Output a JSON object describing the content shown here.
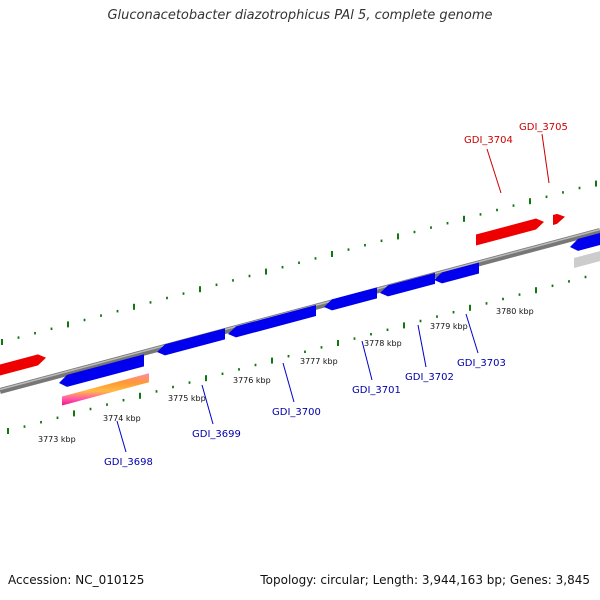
{
  "title": "Gluconacetobacter diazotrophicus PAl 5, complete genome",
  "footer": {
    "accession": "Accession: NC_010125",
    "topology": "Topology: circular; Length: 3,944,163 bp; Genes: 3,845"
  },
  "colors": {
    "forward_gene": "#ee0000",
    "reverse_gene": "#0000ee",
    "rna": "#ff9933",
    "tick": "#117711",
    "backbone": "#888888",
    "grey_feature": "#cccccc"
  },
  "kbp_labels": [
    "3773 kbp",
    "3774 kbp",
    "3775 kbp",
    "3776 kbp",
    "3777 kbp",
    "3778 kbp",
    "3779 kbp",
    "3780 kbp"
  ],
  "genes": [
    {
      "name": "GDI_3698",
      "strand": "reverse"
    },
    {
      "name": "GDI_3699",
      "strand": "reverse"
    },
    {
      "name": "GDI_3700",
      "strand": "reverse"
    },
    {
      "name": "GDI_3701",
      "strand": "reverse"
    },
    {
      "name": "GDI_3702",
      "strand": "reverse"
    },
    {
      "name": "GDI_3703",
      "strand": "reverse"
    },
    {
      "name": "GDI_3704",
      "strand": "forward"
    },
    {
      "name": "GDI_3705",
      "strand": "forward"
    }
  ]
}
